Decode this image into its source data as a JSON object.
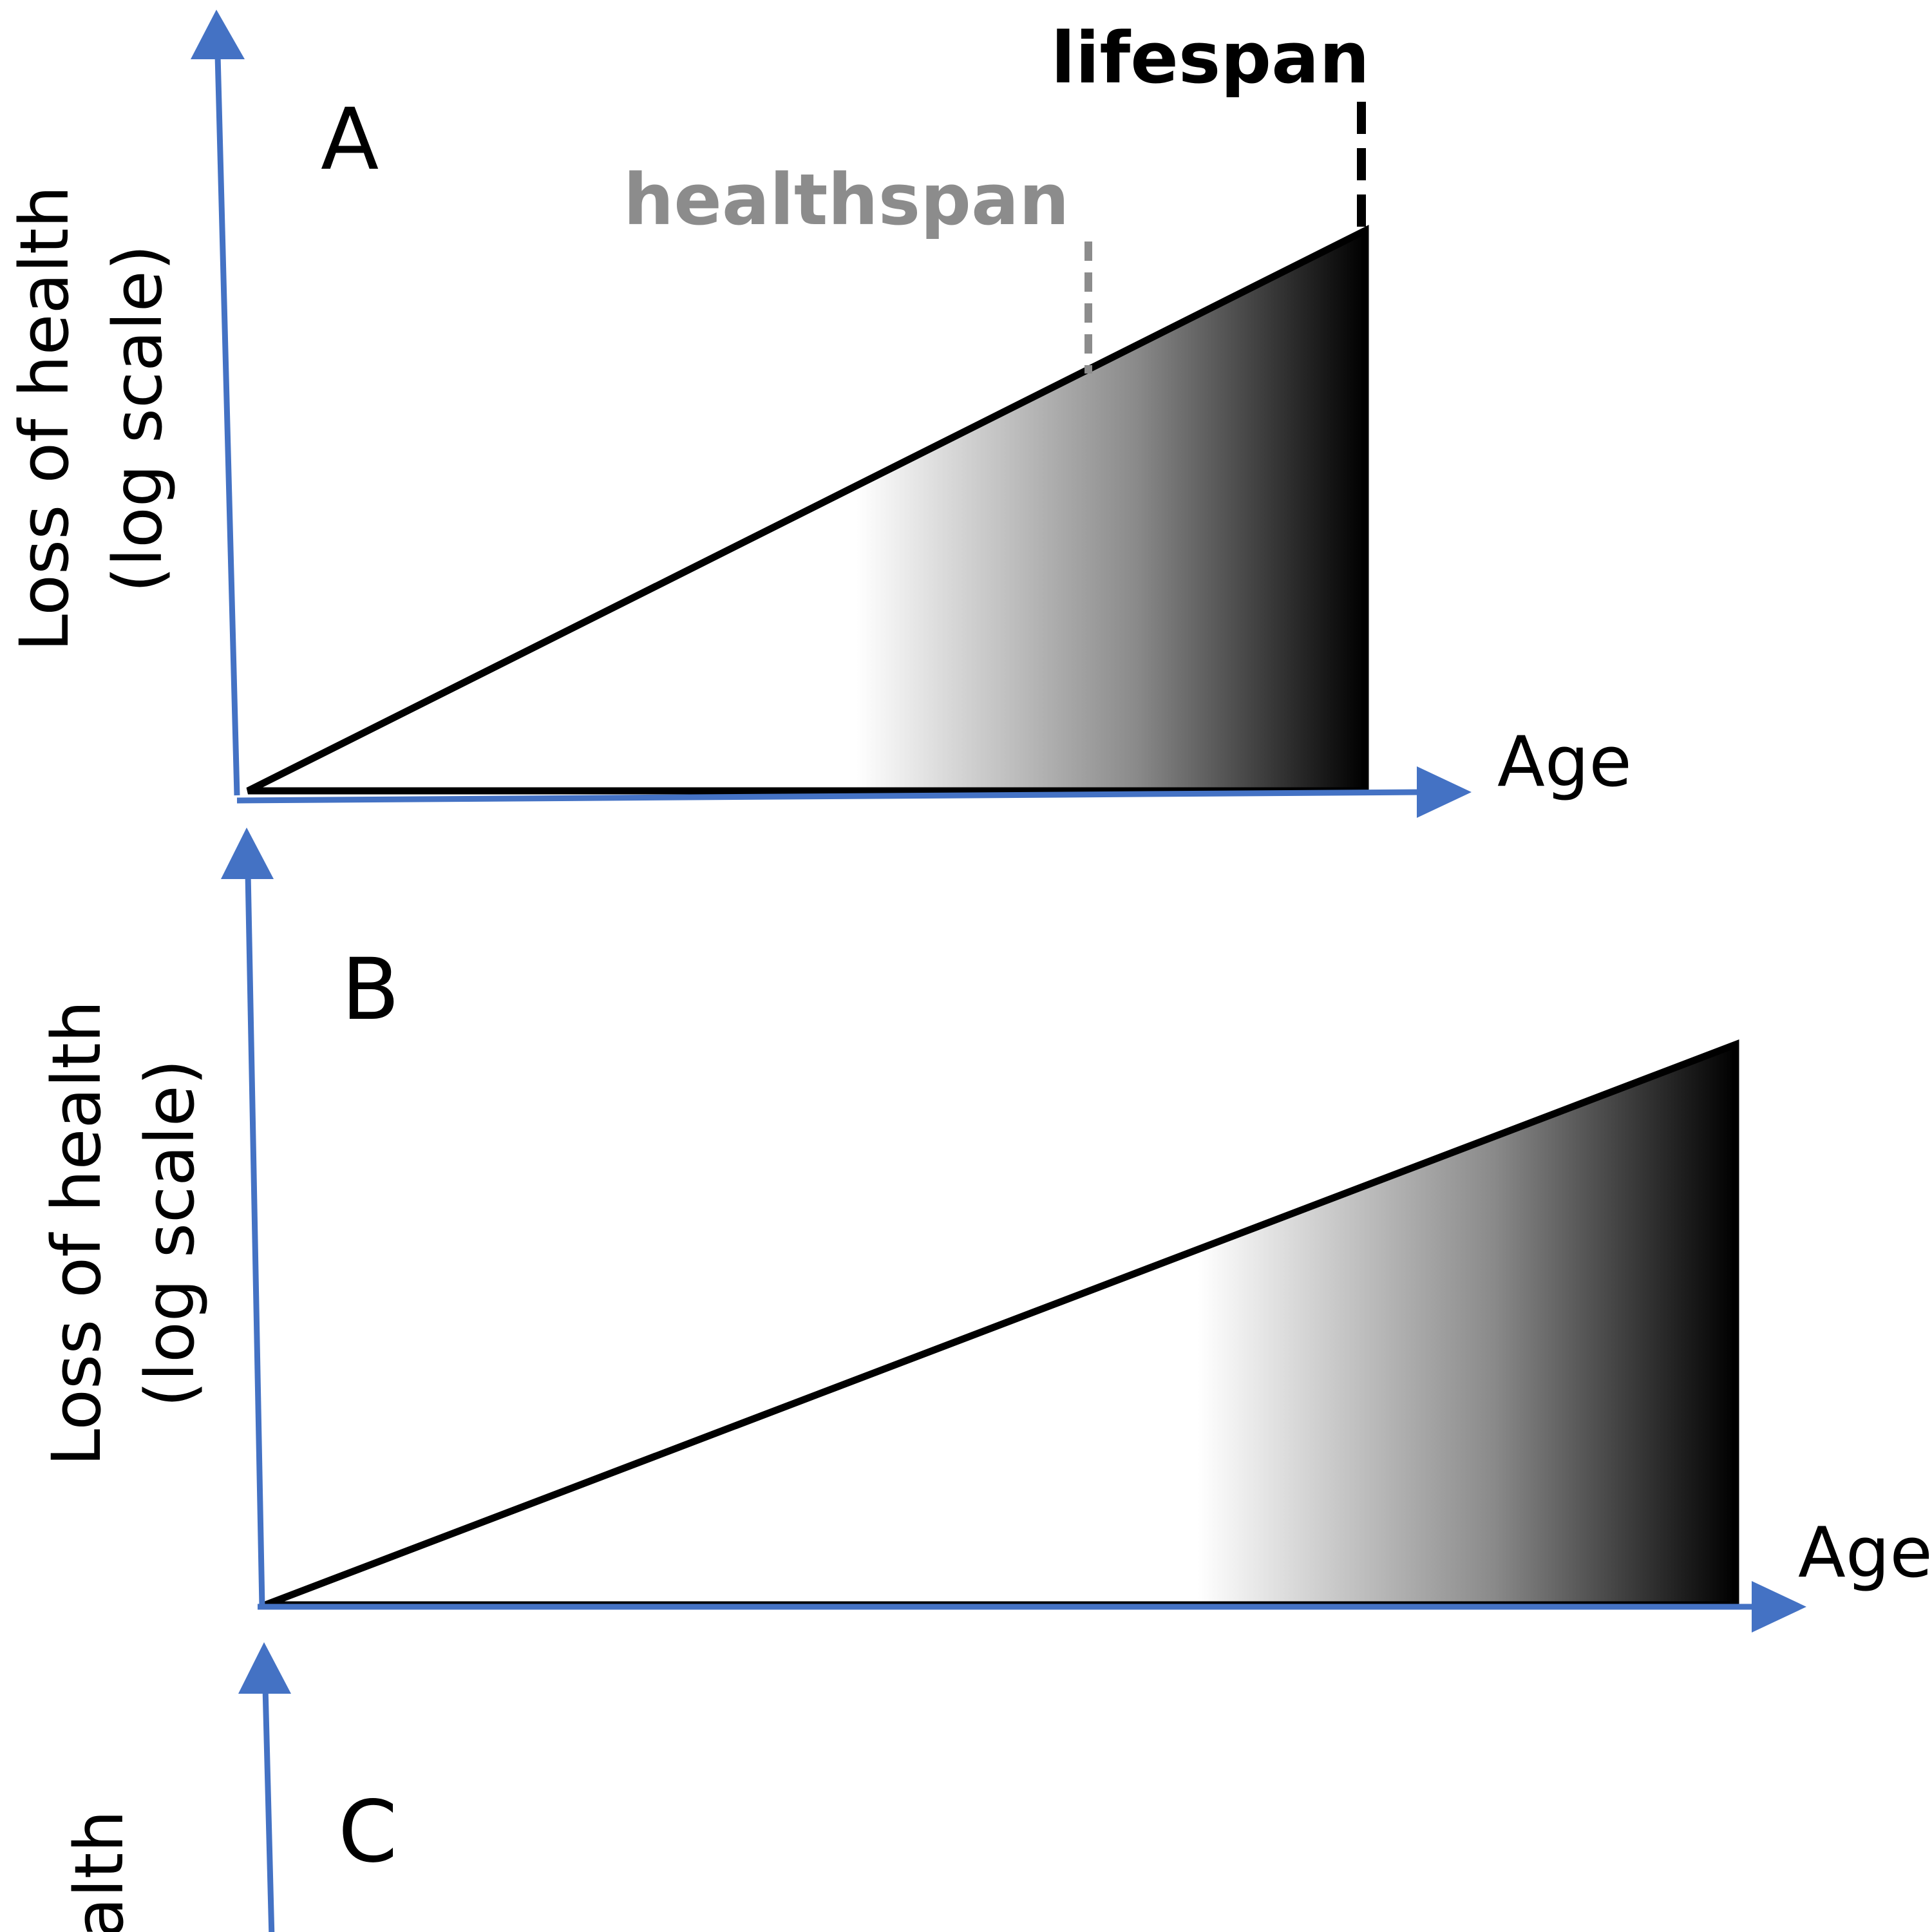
{
  "colors": {
    "axis": "#4472c4",
    "outline": "#000000",
    "healthspan": "#8c8c8c",
    "lifespan": "#000000",
    "fill_light": "#ffffff",
    "fill_dark": "#000000"
  },
  "icons": [
    "arrow-up-icon",
    "arrow-right-icon"
  ],
  "panels": [
    {
      "letter": "A",
      "y_label_line1": "Loss of health",
      "y_label_line2": "(log scale)",
      "x_label": "Age",
      "healthspan_label": "healthspan",
      "lifespan_label": "lifespan"
    },
    {
      "letter": "B",
      "y_label_line1": "Loss of health",
      "y_label_line2": "(log scale)",
      "x_label": "Age"
    },
    {
      "letter": "C",
      "y_label_partial": "alth"
    }
  ]
}
